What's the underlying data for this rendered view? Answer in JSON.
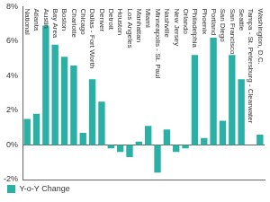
{
  "chart_data": {
    "type": "bar",
    "categories": [
      "National",
      "Atlanta",
      "Austin",
      "Bay Area",
      "Boston",
      "Charlotte",
      "Chicago",
      "Dallas - Fort Worth",
      "Denver",
      "Detroit",
      "Houston",
      "Los Angeles",
      "Manhattan",
      "Miami",
      "Minneapolis - St. Paul",
      "Nashville",
      "New Jersey",
      "Orlando",
      "Philadelphia",
      "Phoenix",
      "Portland",
      "San Diego",
      "San Francisco",
      "Seattle",
      "Tampa - St. Petersburg - Clearwater",
      "Washington, D.C."
    ],
    "series": [
      {
        "name": "Y-o-Y Change",
        "color": "#2bb0a5",
        "values": [
          1.5,
          1.8,
          6.9,
          5.8,
          5.1,
          4.6,
          0.7,
          3.8,
          2.5,
          -0.2,
          -0.4,
          -0.7,
          0.2,
          1.1,
          -1.6,
          0.9,
          -0.4,
          -0.2,
          5.2,
          0.4,
          6.2,
          1.4,
          5.2,
          3.8,
          0.0,
          0.6
        ]
      }
    ],
    "ylim": [
      -2,
      8
    ],
    "yticks": [
      {
        "value": -2,
        "label": "-2%"
      },
      {
        "value": 0,
        "label": "0%"
      },
      {
        "value": 2,
        "label": "2%"
      },
      {
        "value": 4,
        "label": "4%"
      },
      {
        "value": 6,
        "label": "6%"
      },
      {
        "value": 8,
        "label": "8%"
      }
    ],
    "grid": false,
    "legend": "bottom-left"
  }
}
